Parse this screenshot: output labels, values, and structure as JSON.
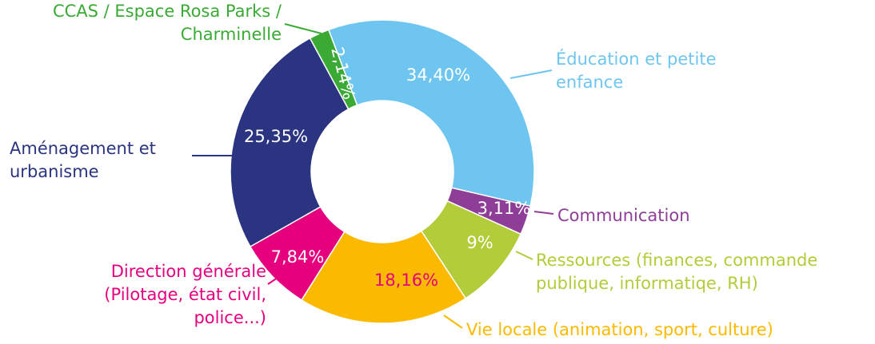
{
  "chart_data": {
    "type": "donut",
    "categories": [
      "Éducation et petite\nenfance",
      "Communication",
      "Ressources (finances, commande\npublique, informatiqe, RH)",
      "Vie locale (animation, sport, culture)",
      "Direction générale\n(Pilotage, état civil,\npolice...)",
      "Aménagement et\nurbanisme",
      "CCAS / Espace Rosa Parks /\nCharminelle"
    ],
    "values": [
      34.4,
      3.11,
      9,
      18.16,
      7.84,
      25.35,
      2.14
    ],
    "value_labels": [
      "34,40%",
      "3,11%",
      "9%",
      "18,16%",
      "7,84%",
      "25,35%",
      "2,14%"
    ],
    "colors": [
      "#6ec6f0",
      "#8e3e96",
      "#b2cc3a",
      "#fbb900",
      "#e6007e",
      "#2b3481",
      "#3aaa35"
    ]
  }
}
